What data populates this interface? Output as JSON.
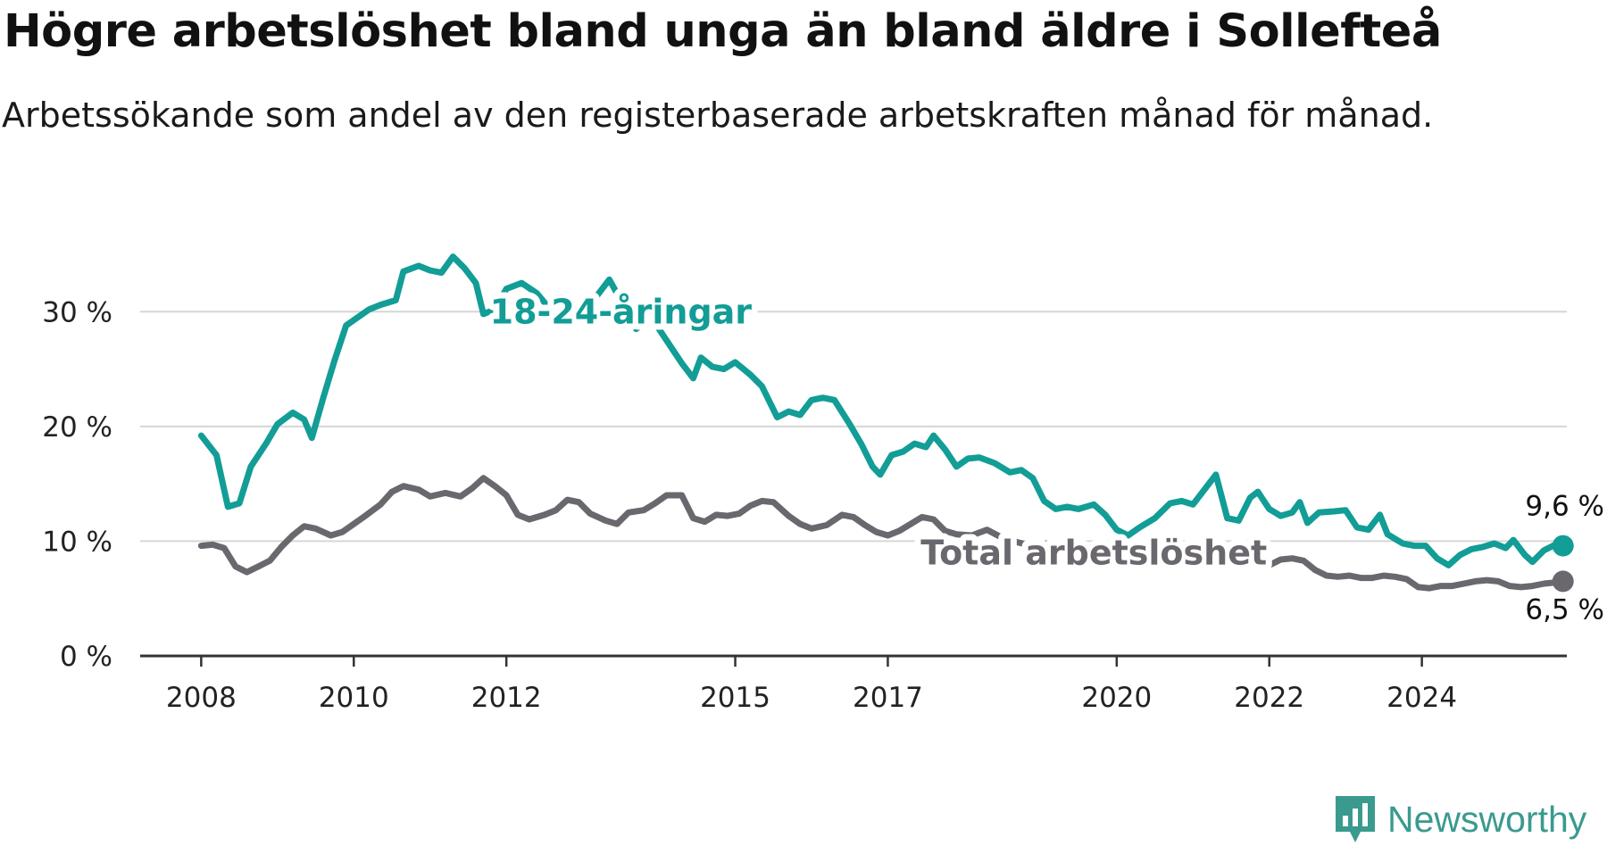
{
  "title": "Högre arbetslöshet bland unga än bland äldre i Sollefteå",
  "subtitle": "Arbetssökande som andel av den registerbaserade arbetskraften månad för månad.",
  "brand": {
    "name": "Newsworthy",
    "color": "#3a9a8e"
  },
  "chart_data": {
    "type": "line",
    "title": "Högre arbetslöshet bland unga än bland äldre i Sollefteå",
    "subtitle": "Arbetssökande som andel av den registerbaserade arbetskraften månad för månad.",
    "xlabel": "",
    "ylabel": "",
    "xlim": [
      2007.2,
      2025.9
    ],
    "ylim": [
      0,
      35
    ],
    "x_ticks": [
      2008,
      2010,
      2012,
      2015,
      2017,
      2020,
      2022,
      2024
    ],
    "x_tick_labels": [
      "2008",
      "2010",
      "2012",
      "2015",
      "2017",
      "2020",
      "2022",
      "2024"
    ],
    "y_ticks": [
      0,
      10,
      20,
      30
    ],
    "y_tick_labels": [
      "0 %",
      "10 %",
      "20 %",
      "30 %"
    ],
    "grid": "horizontal",
    "legend": "none (direct line labels)",
    "series": [
      {
        "name": "18-24-åringar",
        "color": "#129d96",
        "label_position": [
          2013.5,
          30.0
        ],
        "end_label": "9,6 %",
        "points": [
          [
            2008.0,
            19.2
          ],
          [
            2008.2,
            17.5
          ],
          [
            2008.35,
            13.0
          ],
          [
            2008.5,
            13.3
          ],
          [
            2008.65,
            16.5
          ],
          [
            2008.85,
            18.5
          ],
          [
            2009.0,
            20.2
          ],
          [
            2009.2,
            21.2
          ],
          [
            2009.35,
            20.6
          ],
          [
            2009.45,
            19.0
          ],
          [
            2009.6,
            22.5
          ],
          [
            2009.75,
            25.8
          ],
          [
            2009.9,
            28.8
          ],
          [
            2010.05,
            29.5
          ],
          [
            2010.2,
            30.2
          ],
          [
            2010.35,
            30.6
          ],
          [
            2010.55,
            31.0
          ],
          [
            2010.65,
            33.5
          ],
          [
            2010.85,
            34.0
          ],
          [
            2011.0,
            33.6
          ],
          [
            2011.15,
            33.4
          ],
          [
            2011.3,
            34.8
          ],
          [
            2011.45,
            33.8
          ],
          [
            2011.6,
            32.5
          ],
          [
            2011.7,
            29.8
          ],
          [
            2011.85,
            30.2
          ],
          [
            2012.0,
            32.0
          ],
          [
            2012.2,
            32.5
          ],
          [
            2012.4,
            31.6
          ],
          [
            2012.6,
            30.0
          ],
          [
            2012.8,
            29.0
          ],
          [
            2013.0,
            29.5
          ],
          [
            2013.2,
            31.5
          ],
          [
            2013.35,
            32.8
          ],
          [
            2013.5,
            31.0
          ],
          [
            2013.7,
            28.5
          ],
          [
            2013.9,
            29.5
          ],
          [
            2014.1,
            27.5
          ],
          [
            2014.3,
            25.5
          ],
          [
            2014.45,
            24.2
          ],
          [
            2014.55,
            26.0
          ],
          [
            2014.7,
            25.2
          ],
          [
            2014.85,
            25.0
          ],
          [
            2015.0,
            25.6
          ],
          [
            2015.2,
            24.5
          ],
          [
            2015.35,
            23.5
          ],
          [
            2015.55,
            20.8
          ],
          [
            2015.7,
            21.3
          ],
          [
            2015.85,
            21.0
          ],
          [
            2016.0,
            22.3
          ],
          [
            2016.15,
            22.5
          ],
          [
            2016.3,
            22.3
          ],
          [
            2016.5,
            20.2
          ],
          [
            2016.65,
            18.5
          ],
          [
            2016.8,
            16.5
          ],
          [
            2016.9,
            15.8
          ],
          [
            2017.05,
            17.5
          ],
          [
            2017.2,
            17.8
          ],
          [
            2017.35,
            18.5
          ],
          [
            2017.5,
            18.2
          ],
          [
            2017.6,
            19.2
          ],
          [
            2017.75,
            18.0
          ],
          [
            2017.9,
            16.5
          ],
          [
            2018.05,
            17.2
          ],
          [
            2018.2,
            17.3
          ],
          [
            2018.4,
            16.8
          ],
          [
            2018.6,
            16.0
          ],
          [
            2018.75,
            16.2
          ],
          [
            2018.9,
            15.5
          ],
          [
            2019.05,
            13.5
          ],
          [
            2019.2,
            12.8
          ],
          [
            2019.35,
            13.0
          ],
          [
            2019.5,
            12.8
          ],
          [
            2019.7,
            13.2
          ],
          [
            2019.85,
            12.3
          ],
          [
            2020.0,
            11.0
          ],
          [
            2020.15,
            10.5
          ],
          [
            2020.3,
            11.2
          ],
          [
            2020.5,
            12.0
          ],
          [
            2020.7,
            13.3
          ],
          [
            2020.85,
            13.5
          ],
          [
            2021.0,
            13.2
          ],
          [
            2021.15,
            14.5
          ],
          [
            2021.3,
            15.8
          ],
          [
            2021.45,
            12.0
          ],
          [
            2021.6,
            11.8
          ],
          [
            2021.75,
            13.8
          ],
          [
            2021.85,
            14.3
          ],
          [
            2022.0,
            12.8
          ],
          [
            2022.15,
            12.2
          ],
          [
            2022.3,
            12.5
          ],
          [
            2022.4,
            13.4
          ],
          [
            2022.5,
            11.6
          ],
          [
            2022.65,
            12.5
          ],
          [
            2022.85,
            12.6
          ],
          [
            2023.0,
            12.7
          ],
          [
            2023.15,
            11.2
          ],
          [
            2023.3,
            11.0
          ],
          [
            2023.45,
            12.3
          ],
          [
            2023.55,
            10.6
          ],
          [
            2023.75,
            9.8
          ],
          [
            2023.9,
            9.6
          ],
          [
            2024.05,
            9.6
          ],
          [
            2024.2,
            8.5
          ],
          [
            2024.35,
            7.9
          ],
          [
            2024.5,
            8.8
          ],
          [
            2024.65,
            9.3
          ],
          [
            2024.8,
            9.5
          ],
          [
            2024.95,
            9.8
          ],
          [
            2025.1,
            9.4
          ],
          [
            2025.2,
            10.1
          ],
          [
            2025.35,
            8.8
          ],
          [
            2025.45,
            8.2
          ],
          [
            2025.6,
            9.2
          ],
          [
            2025.75,
            9.7
          ],
          [
            2025.85,
            9.6
          ]
        ]
      },
      {
        "name": "Total arbetslöshet",
        "color": "#6b676e",
        "label_position": [
          2019.7,
          9.0
        ],
        "end_label": "6,5 %",
        "points": [
          [
            2008.0,
            9.6
          ],
          [
            2008.15,
            9.7
          ],
          [
            2008.3,
            9.4
          ],
          [
            2008.45,
            7.8
          ],
          [
            2008.6,
            7.3
          ],
          [
            2008.75,
            7.8
          ],
          [
            2008.9,
            8.3
          ],
          [
            2009.05,
            9.5
          ],
          [
            2009.2,
            10.5
          ],
          [
            2009.35,
            11.3
          ],
          [
            2009.5,
            11.1
          ],
          [
            2009.7,
            10.5
          ],
          [
            2009.85,
            10.8
          ],
          [
            2010.0,
            11.5
          ],
          [
            2010.15,
            12.2
          ],
          [
            2010.35,
            13.2
          ],
          [
            2010.5,
            14.3
          ],
          [
            2010.65,
            14.8
          ],
          [
            2010.85,
            14.5
          ],
          [
            2011.0,
            13.9
          ],
          [
            2011.2,
            14.2
          ],
          [
            2011.4,
            13.9
          ],
          [
            2011.55,
            14.6
          ],
          [
            2011.7,
            15.5
          ],
          [
            2011.85,
            14.8
          ],
          [
            2012.0,
            14.0
          ],
          [
            2012.15,
            12.3
          ],
          [
            2012.3,
            11.9
          ],
          [
            2012.5,
            12.3
          ],
          [
            2012.65,
            12.7
          ],
          [
            2012.8,
            13.6
          ],
          [
            2012.95,
            13.4
          ],
          [
            2013.1,
            12.4
          ],
          [
            2013.3,
            11.8
          ],
          [
            2013.45,
            11.5
          ],
          [
            2013.6,
            12.5
          ],
          [
            2013.8,
            12.7
          ],
          [
            2013.95,
            13.3
          ],
          [
            2014.1,
            14.0
          ],
          [
            2014.3,
            14.0
          ],
          [
            2014.45,
            12.0
          ],
          [
            2014.6,
            11.7
          ],
          [
            2014.75,
            12.3
          ],
          [
            2014.9,
            12.2
          ],
          [
            2015.05,
            12.4
          ],
          [
            2015.2,
            13.1
          ],
          [
            2015.35,
            13.5
          ],
          [
            2015.5,
            13.4
          ],
          [
            2015.7,
            12.2
          ],
          [
            2015.85,
            11.5
          ],
          [
            2016.0,
            11.1
          ],
          [
            2016.2,
            11.4
          ],
          [
            2016.4,
            12.3
          ],
          [
            2016.55,
            12.1
          ],
          [
            2016.7,
            11.4
          ],
          [
            2016.85,
            10.8
          ],
          [
            2017.0,
            10.5
          ],
          [
            2017.15,
            10.9
          ],
          [
            2017.3,
            11.5
          ],
          [
            2017.45,
            12.1
          ],
          [
            2017.6,
            11.9
          ],
          [
            2017.75,
            10.9
          ],
          [
            2017.9,
            10.6
          ],
          [
            2018.1,
            10.5
          ],
          [
            2018.3,
            11.0
          ],
          [
            2018.5,
            10.3
          ],
          [
            2018.7,
            9.9
          ],
          [
            2018.9,
            9.6
          ],
          [
            2019.1,
            9.8
          ],
          [
            2019.3,
            9.5
          ],
          [
            2019.5,
            9.3
          ],
          [
            2019.7,
            9.0
          ],
          [
            2019.9,
            8.8
          ],
          [
            2020.1,
            8.6
          ],
          [
            2020.3,
            8.5
          ],
          [
            2020.5,
            8.4
          ],
          [
            2020.7,
            8.3
          ],
          [
            2020.9,
            8.2
          ],
          [
            2021.1,
            8.2
          ],
          [
            2021.3,
            8.1
          ],
          [
            2021.5,
            8.0
          ],
          [
            2021.7,
            8.0
          ],
          [
            2021.85,
            8.0
          ],
          [
            2022.0,
            7.9
          ],
          [
            2022.15,
            8.4
          ],
          [
            2022.3,
            8.5
          ],
          [
            2022.45,
            8.3
          ],
          [
            2022.6,
            7.5
          ],
          [
            2022.75,
            7.0
          ],
          [
            2022.9,
            6.9
          ],
          [
            2023.05,
            7.0
          ],
          [
            2023.2,
            6.8
          ],
          [
            2023.35,
            6.8
          ],
          [
            2023.5,
            7.0
          ],
          [
            2023.65,
            6.9
          ],
          [
            2023.8,
            6.7
          ],
          [
            2023.95,
            6.0
          ],
          [
            2024.1,
            5.9
          ],
          [
            2024.25,
            6.1
          ],
          [
            2024.4,
            6.1
          ],
          [
            2024.55,
            6.3
          ],
          [
            2024.7,
            6.5
          ],
          [
            2024.85,
            6.6
          ],
          [
            2025.0,
            6.5
          ],
          [
            2025.15,
            6.1
          ],
          [
            2025.3,
            6.0
          ],
          [
            2025.45,
            6.1
          ],
          [
            2025.6,
            6.3
          ],
          [
            2025.75,
            6.4
          ],
          [
            2025.85,
            6.5
          ]
        ]
      }
    ]
  }
}
